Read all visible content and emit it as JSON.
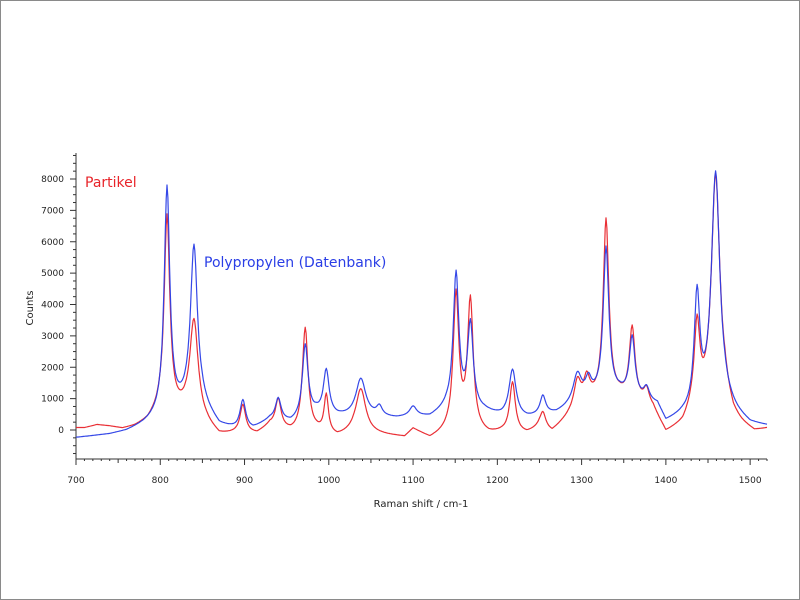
{
  "chart_data": {
    "type": "line",
    "title": "",
    "xlabel": "Raman shift / cm-1",
    "ylabel": "Counts",
    "xlim": [
      700,
      1520
    ],
    "ylim": [
      -1000,
      8800
    ],
    "x_ticks": [
      700,
      800,
      900,
      1000,
      1100,
      1200,
      1300,
      1400,
      1500
    ],
    "y_ticks": [
      0,
      1000,
      2000,
      3000,
      4000,
      5000,
      6000,
      7000,
      8000
    ],
    "grid": false,
    "legend": "inline text labels",
    "series": [
      {
        "name": "Partikel",
        "color": "#e8242a",
        "baseline": [
          [
            700,
            60
          ],
          [
            710,
            60
          ],
          [
            725,
            150
          ],
          [
            740,
            100
          ],
          [
            755,
            20
          ],
          [
            770,
            90
          ],
          [
            785,
            250
          ],
          [
            800,
            600
          ],
          [
            830,
            500
          ],
          [
            855,
            120
          ],
          [
            870,
            -200
          ],
          [
            890,
            -150
          ],
          [
            915,
            -150
          ],
          [
            930,
            120
          ],
          [
            955,
            -100
          ],
          [
            985,
            -80
          ],
          [
            1010,
            -250
          ],
          [
            1030,
            -100
          ],
          [
            1050,
            -150
          ],
          [
            1070,
            -200
          ],
          [
            1090,
            -250
          ],
          [
            1100,
            0
          ],
          [
            1120,
            -300
          ],
          [
            1140,
            -100
          ],
          [
            1160,
            0
          ],
          [
            1190,
            -180
          ],
          [
            1205,
            -120
          ],
          [
            1235,
            -150
          ],
          [
            1250,
            50
          ],
          [
            1265,
            -100
          ],
          [
            1285,
            400
          ],
          [
            1310,
            900
          ],
          [
            1345,
            1000
          ],
          [
            1370,
            800
          ],
          [
            1385,
            600
          ],
          [
            1400,
            -150
          ],
          [
            1420,
            100
          ],
          [
            1430,
            500
          ],
          [
            1470,
            900
          ],
          [
            1480,
            300
          ],
          [
            1490,
            100
          ],
          [
            1505,
            -100
          ],
          [
            1520,
            0
          ]
        ],
        "peaks": [
          [
            808,
            6200,
            4
          ],
          [
            840,
            3100,
            6
          ],
          [
            898,
            900,
            4
          ],
          [
            940,
            900,
            4
          ],
          [
            972,
            3300,
            4
          ],
          [
            997,
            1200,
            3
          ],
          [
            1038,
            1400,
            7
          ],
          [
            1151,
            4300,
            4
          ],
          [
            1168,
            4100,
            4
          ],
          [
            1218,
            1600,
            4
          ],
          [
            1254,
            500,
            4
          ],
          [
            1295,
            900,
            5
          ],
          [
            1306,
            700,
            4
          ],
          [
            1329,
            5700,
            4
          ],
          [
            1360,
            2300,
            4
          ],
          [
            1377,
            500,
            4
          ],
          [
            1437,
            2600,
            4
          ],
          [
            1459,
            7300,
            6
          ]
        ]
      },
      {
        "name": "Polypropylen (Datenbank)",
        "color": "#2a3ee6",
        "baseline": [
          [
            700,
            -250
          ],
          [
            720,
            -200
          ],
          [
            740,
            -150
          ],
          [
            760,
            -50
          ],
          [
            780,
            150
          ],
          [
            800,
            400
          ],
          [
            830,
            700
          ],
          [
            850,
            700
          ],
          [
            870,
            100
          ],
          [
            890,
            0
          ],
          [
            910,
            0
          ],
          [
            930,
            300
          ],
          [
            955,
            200
          ],
          [
            985,
            500
          ],
          [
            1010,
            400
          ],
          [
            1050,
            400
          ],
          [
            1080,
            350
          ],
          [
            1100,
            400
          ],
          [
            1120,
            380
          ],
          [
            1140,
            650
          ],
          [
            1185,
            550
          ],
          [
            1205,
            400
          ],
          [
            1235,
            350
          ],
          [
            1270,
            500
          ],
          [
            1285,
            700
          ],
          [
            1310,
            1000
          ],
          [
            1345,
            1100
          ],
          [
            1370,
            900
          ],
          [
            1390,
            750
          ],
          [
            1400,
            200
          ],
          [
            1420,
            400
          ],
          [
            1470,
            700
          ],
          [
            1485,
            400
          ],
          [
            1500,
            150
          ],
          [
            1520,
            100
          ]
        ],
        "peaks": [
          [
            808,
            7200,
            4
          ],
          [
            840,
            5100,
            5
          ],
          [
            898,
            900,
            4
          ],
          [
            940,
            700,
            4
          ],
          [
            972,
            2300,
            4
          ],
          [
            997,
            1400,
            4
          ],
          [
            1038,
            1200,
            7
          ],
          [
            1060,
            300,
            4
          ],
          [
            1100,
            300,
            5
          ],
          [
            1151,
            4300,
            4
          ],
          [
            1168,
            2700,
            4
          ],
          [
            1218,
            1500,
            5
          ],
          [
            1254,
            600,
            4
          ],
          [
            1295,
            900,
            6
          ],
          [
            1308,
            500,
            4
          ],
          [
            1329,
            4700,
            4
          ],
          [
            1360,
            1900,
            4
          ],
          [
            1377,
            400,
            4
          ],
          [
            1437,
            3600,
            4
          ],
          [
            1459,
            7500,
            6
          ]
        ]
      }
    ]
  },
  "labels": {
    "partikel": "Partikel",
    "polypropylen": "Polypropylen (Datenbank)"
  }
}
